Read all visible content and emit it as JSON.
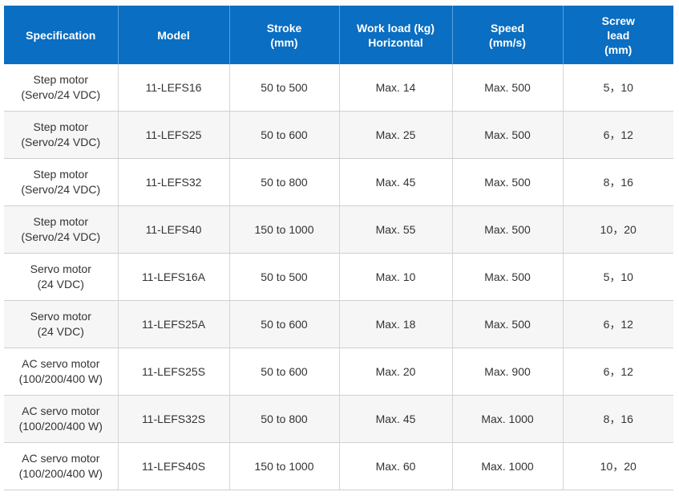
{
  "headers": [
    {
      "lines": [
        "Specification"
      ]
    },
    {
      "lines": [
        "Model"
      ]
    },
    {
      "lines": [
        "Stroke",
        "(mm)"
      ]
    },
    {
      "lines": [
        "Work load (kg)",
        "Horizontal"
      ]
    },
    {
      "lines": [
        "Speed",
        "(mm/s)"
      ]
    },
    {
      "lines": [
        "Screw",
        "lead",
        "(mm)"
      ]
    }
  ],
  "rows": [
    {
      "spec": [
        "Step motor",
        "(Servo/24 VDC)"
      ],
      "model": "11-LEFS16",
      "stroke": "50 to 500",
      "workload": "Max. 14",
      "speed": "Max. 500",
      "lead": "5，10"
    },
    {
      "spec": [
        "Step motor",
        "(Servo/24 VDC)"
      ],
      "model": "11-LEFS25",
      "stroke": "50 to 600",
      "workload": "Max. 25",
      "speed": "Max. 500",
      "lead": "6，12"
    },
    {
      "spec": [
        "Step motor",
        "(Servo/24 VDC)"
      ],
      "model": "11-LEFS32",
      "stroke": "50 to 800",
      "workload": "Max. 45",
      "speed": "Max. 500",
      "lead": "8，16"
    },
    {
      "spec": [
        "Step motor",
        "(Servo/24 VDC)"
      ],
      "model": "11-LEFS40",
      "stroke": "150 to 1000",
      "workload": "Max. 55",
      "speed": "Max. 500",
      "lead": "10，20"
    },
    {
      "spec": [
        "Servo motor",
        "(24 VDC)"
      ],
      "model": "11-LEFS16A",
      "stroke": "50 to 500",
      "workload": "Max. 10",
      "speed": "Max. 500",
      "lead": "5，10"
    },
    {
      "spec": [
        "Servo motor",
        "(24 VDC)"
      ],
      "model": "11-LEFS25A",
      "stroke": "50 to 600",
      "workload": "Max. 18",
      "speed": "Max. 500",
      "lead": "6，12"
    },
    {
      "spec": [
        "AC servo motor",
        "(100/200/400 W)"
      ],
      "model": "11-LEFS25S",
      "stroke": "50 to 600",
      "workload": "Max. 20",
      "speed": "Max. 900",
      "lead": "6，12"
    },
    {
      "spec": [
        "AC servo motor",
        "(100/200/400 W)"
      ],
      "model": "11-LEFS32S",
      "stroke": "50 to 800",
      "workload": "Max. 45",
      "speed": "Max. 1000",
      "lead": "8，16"
    },
    {
      "spec": [
        "AC servo motor",
        "(100/200/400 W)"
      ],
      "model": "11-LEFS40S",
      "stroke": "150 to 1000",
      "workload": "Max. 60",
      "speed": "Max. 1000",
      "lead": "10，20"
    }
  ],
  "colors": {
    "header_bg": "#0a6ec2",
    "header_text": "#ffffff",
    "alt_row_bg": "#f6f6f6",
    "body_text": "#333333"
  }
}
